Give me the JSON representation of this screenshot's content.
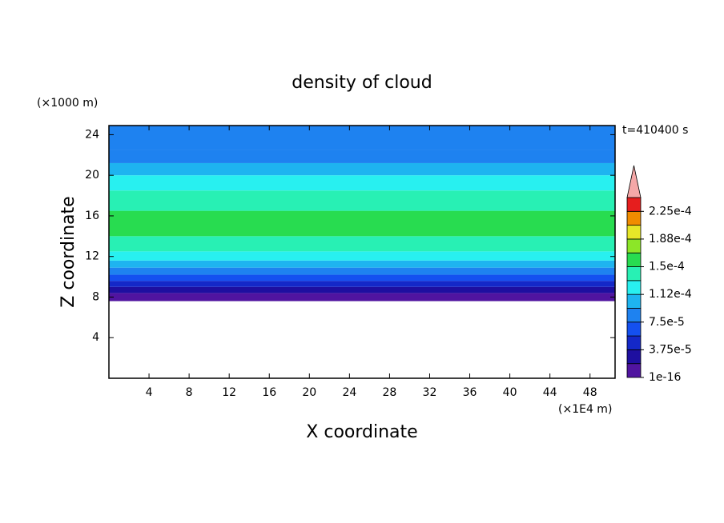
{
  "chart_data": {
    "type": "contour",
    "title": "density of cloud",
    "y_unit_label": "(×1000 m)",
    "x_unit_label": "(×1E4 m)",
    "time_label": "t=410400 s",
    "x_label": "X coordinate",
    "y_label": "Z coordinate",
    "xlim": [
      0,
      50.5
    ],
    "xticks": [
      4,
      8,
      12,
      16,
      20,
      24,
      28,
      32,
      36,
      40,
      44,
      48
    ],
    "ylim": [
      0,
      24.9
    ],
    "yticks": [
      4,
      8,
      12,
      16,
      20,
      24
    ],
    "z_edges": [
      7.6,
      8.4,
      9.0,
      9.6,
      10.2,
      10.9,
      11.6,
      12.5,
      14,
      16.5,
      18.5,
      20,
      21.2,
      22.5,
      24.9
    ],
    "values": [
      1e-05,
      2.5e-05,
      4.5e-05,
      6.5e-05,
      8e-05,
      0.0001,
      0.00012,
      0.00014,
      0.00016,
      0.00014,
      0.00012,
      0.000105,
      9e-05,
      8e-05
    ],
    "levels": [
      1e-16,
      1.875e-05,
      3.75e-05,
      5.625e-05,
      7.5e-05,
      9.375e-05,
      0.0001125,
      0.00013125,
      0.00015,
      0.00016875,
      0.0001875,
      0.00020625,
      0.000225,
      0.00024375
    ],
    "colors": [
      "#5014a0",
      "#1e0fa0",
      "#1428c8",
      "#1450f0",
      "#1e82f0",
      "#1eb4f0",
      "#28f0f0",
      "#28f0b4",
      "#28dc50",
      "#8ce628",
      "#e6e628",
      "#f08c00",
      "#e61e1e"
    ],
    "extend_color": "#f5a8a8",
    "colorbar_ticks": [
      {
        "value": 1e-16,
        "label": "1e-16"
      },
      {
        "value": 3.75e-05,
        "label": "3.75e-5"
      },
      {
        "value": 7.5e-05,
        "label": "7.5e-5"
      },
      {
        "value": 0.0001125,
        "label": "1.12e-4"
      },
      {
        "value": 0.00015,
        "label": "1.5e-4"
      },
      {
        "value": 0.0001875,
        "label": "1.88e-4"
      },
      {
        "value": 0.000225,
        "label": "2.25e-4"
      }
    ]
  }
}
